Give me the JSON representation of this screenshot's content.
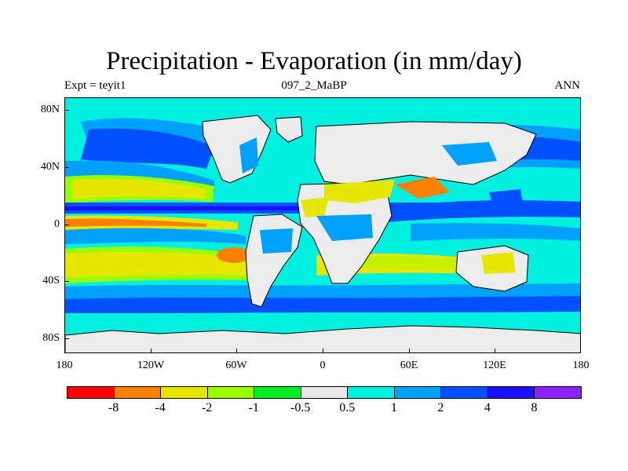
{
  "title": "Precipitation - Evaporation (in mm/day)",
  "subtitle_left": "Expt = teyit1",
  "subtitle_center": "097_2_MaBP",
  "subtitle_right": "ANN",
  "lat_labels": [
    "80N",
    "40N",
    "0",
    "40S",
    "80S"
  ],
  "lon_labels": [
    "180",
    "120W",
    "60W",
    "0",
    "60E",
    "120E",
    "180"
  ],
  "colorbar": {
    "colors": [
      "#ff0000",
      "#ff8000",
      "#e6e600",
      "#99ff00",
      "#00ee22",
      "#e8e8e8",
      "#00f0e0",
      "#00a0ff",
      "#0050ff",
      "#1a10ff",
      "#8a20ff"
    ],
    "labels": [
      "-8",
      "-4",
      "-2",
      "-1",
      "-0.5",
      "0.5",
      "1",
      "2",
      "4",
      "8"
    ]
  },
  "map_fields": {
    "colors": {
      "land_gray": "#ececec",
      "light_cyan": "#00f0e0",
      "light_blue": "#00a0ff",
      "blue": "#0050ff",
      "deep_blue": "#1a10ff",
      "yellow": "#e6e600",
      "green_yellow": "#99ff00",
      "orange": "#ff8000",
      "coast": "#000000"
    }
  }
}
